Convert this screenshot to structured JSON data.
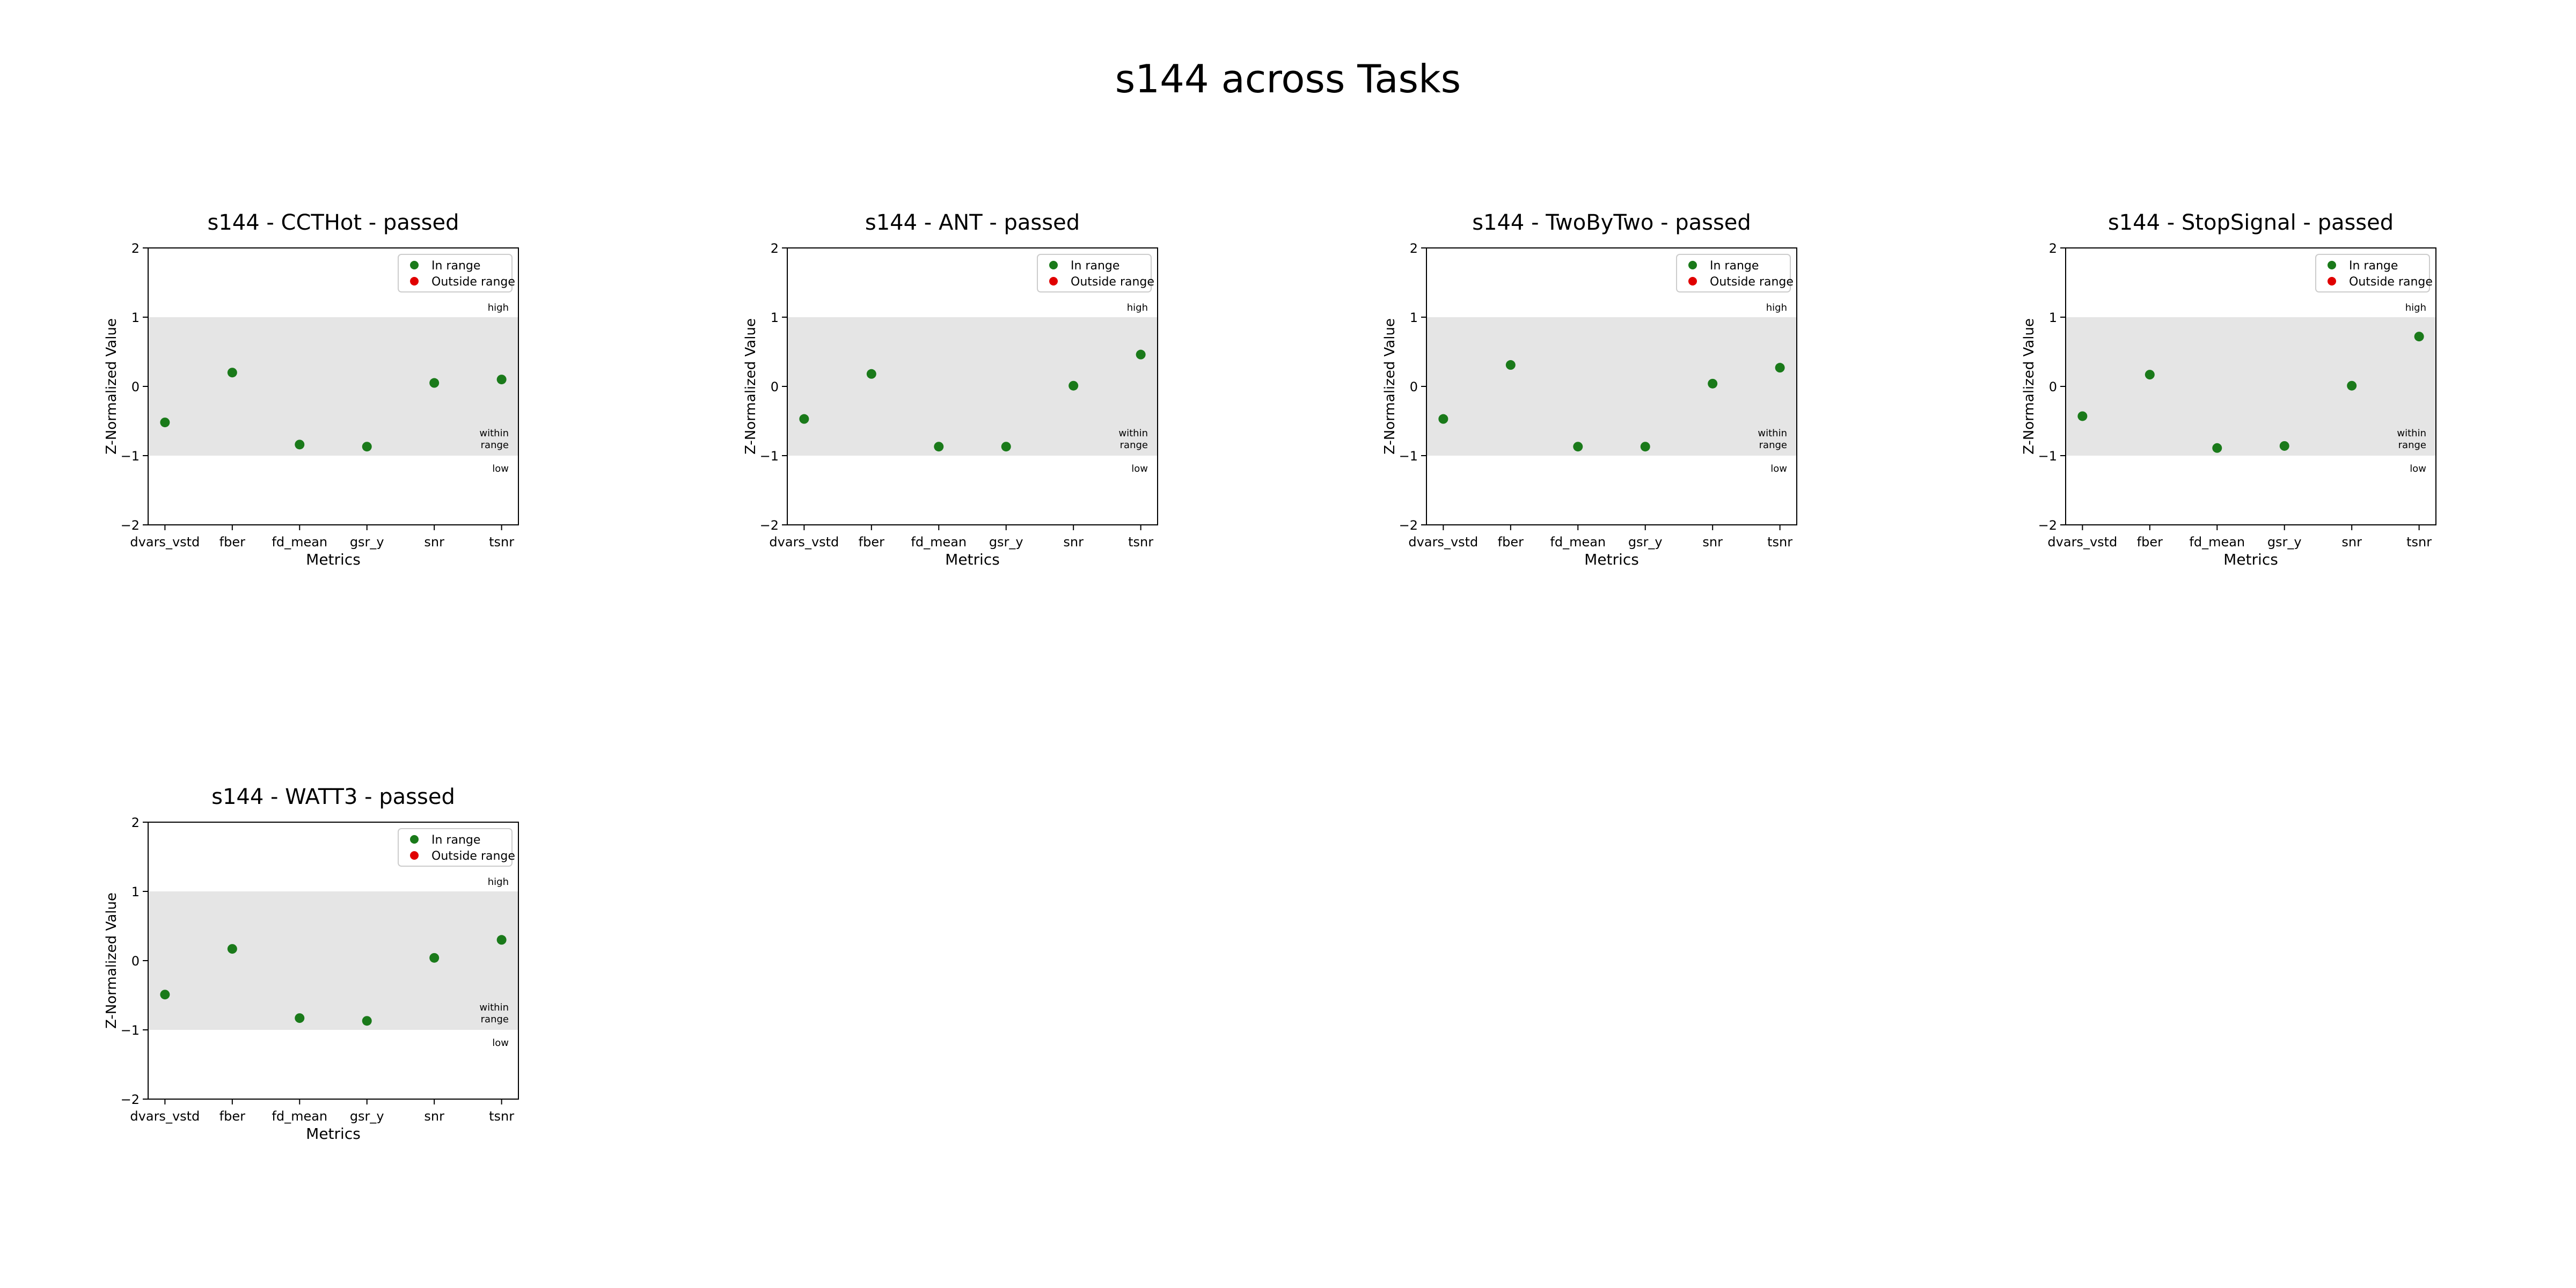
{
  "figure": {
    "suptitle": "s144 across Tasks"
  },
  "chart_data": [
    {
      "type": "scatter",
      "title": "s144 - CCTHot - passed",
      "xlabel": "Metrics",
      "ylabel": "Z-Normalized Value",
      "categories": [
        "dvars_vstd",
        "fber",
        "fd_mean",
        "gsr_y",
        "snr",
        "tsnr"
      ],
      "values": [
        -0.52,
        0.2,
        -0.84,
        -0.87,
        0.05,
        0.1
      ],
      "ylim": [
        -2,
        2
      ],
      "yticks": [
        "2",
        "1",
        "0",
        "−1",
        "−2"
      ],
      "band": {
        "low": -1,
        "high": 1,
        "color": "#e5e5e5"
      },
      "band_labels": {
        "high": "high",
        "within": [
          "within",
          "range"
        ],
        "low": "low"
      },
      "legend": {
        "position": "top-right",
        "in_label": "In range",
        "out_label": "Outside range"
      },
      "colors": {
        "in_range": "#1a7a1a",
        "outside": "#e00000"
      }
    },
    {
      "type": "scatter",
      "title": "s144 - ANT - passed",
      "xlabel": "Metrics",
      "ylabel": "Z-Normalized Value",
      "categories": [
        "dvars_vstd",
        "fber",
        "fd_mean",
        "gsr_y",
        "snr",
        "tsnr"
      ],
      "values": [
        -0.47,
        0.18,
        -0.87,
        -0.87,
        0.01,
        0.46
      ],
      "ylim": [
        -2,
        2
      ],
      "yticks": [
        "2",
        "1",
        "0",
        "−1",
        "−2"
      ],
      "band": {
        "low": -1,
        "high": 1,
        "color": "#e5e5e5"
      },
      "band_labels": {
        "high": "high",
        "within": [
          "within",
          "range"
        ],
        "low": "low"
      },
      "legend": {
        "position": "top-right",
        "in_label": "In range",
        "out_label": "Outside range"
      },
      "colors": {
        "in_range": "#1a7a1a",
        "outside": "#e00000"
      }
    },
    {
      "type": "scatter",
      "title": "s144 - TwoByTwo - passed",
      "xlabel": "Metrics",
      "ylabel": "Z-Normalized Value",
      "categories": [
        "dvars_vstd",
        "fber",
        "fd_mean",
        "gsr_y",
        "snr",
        "tsnr"
      ],
      "values": [
        -0.47,
        0.31,
        -0.87,
        -0.87,
        0.04,
        0.27
      ],
      "ylim": [
        -2,
        2
      ],
      "yticks": [
        "2",
        "1",
        "0",
        "−1",
        "−2"
      ],
      "band": {
        "low": -1,
        "high": 1,
        "color": "#e5e5e5"
      },
      "band_labels": {
        "high": "high",
        "within": [
          "within",
          "range"
        ],
        "low": "low"
      },
      "legend": {
        "position": "top-right",
        "in_label": "In range",
        "out_label": "Outside range"
      },
      "colors": {
        "in_range": "#1a7a1a",
        "outside": "#e00000"
      }
    },
    {
      "type": "scatter",
      "title": "s144 - StopSignal - passed",
      "xlabel": "Metrics",
      "ylabel": "Z-Normalized Value",
      "categories": [
        "dvars_vstd",
        "fber",
        "fd_mean",
        "gsr_y",
        "snr",
        "tsnr"
      ],
      "values": [
        -0.43,
        0.17,
        -0.89,
        -0.86,
        0.01,
        0.72
      ],
      "ylim": [
        -2,
        2
      ],
      "yticks": [
        "2",
        "1",
        "0",
        "−1",
        "−2"
      ],
      "band": {
        "low": -1,
        "high": 1,
        "color": "#e5e5e5"
      },
      "band_labels": {
        "high": "high",
        "within": [
          "within",
          "range"
        ],
        "low": "low"
      },
      "legend": {
        "position": "top-right",
        "in_label": "In range",
        "out_label": "Outside range"
      },
      "colors": {
        "in_range": "#1a7a1a",
        "outside": "#e00000"
      }
    },
    {
      "type": "scatter",
      "title": "s144 - WATT3 - passed",
      "xlabel": "Metrics",
      "ylabel": "Z-Normalized Value",
      "categories": [
        "dvars_vstd",
        "fber",
        "fd_mean",
        "gsr_y",
        "snr",
        "tsnr"
      ],
      "values": [
        -0.49,
        0.17,
        -0.83,
        -0.87,
        0.04,
        0.3
      ],
      "ylim": [
        -2,
        2
      ],
      "yticks": [
        "2",
        "1",
        "0",
        "−1",
        "−2"
      ],
      "band": {
        "low": -1,
        "high": 1,
        "color": "#e5e5e5"
      },
      "band_labels": {
        "high": "high",
        "within": [
          "within",
          "range"
        ],
        "low": "low"
      },
      "legend": {
        "position": "top-right",
        "in_label": "In range",
        "out_label": "Outside range"
      },
      "colors": {
        "in_range": "#1a7a1a",
        "outside": "#e00000"
      }
    }
  ]
}
